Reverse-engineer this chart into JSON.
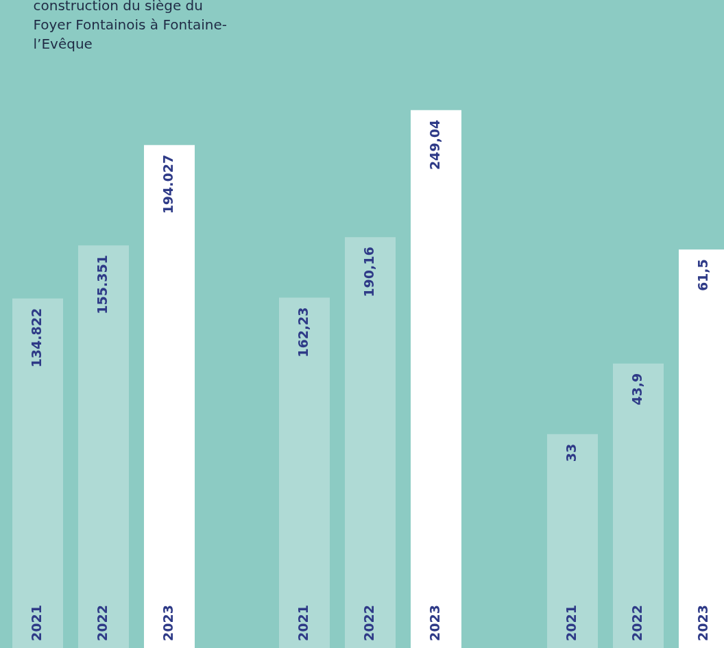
{
  "chart_data": [
    {
      "type": "bar",
      "categories": [
        "2021",
        "2022",
        "2023"
      ],
      "values": [
        134822,
        155351,
        194027
      ],
      "colors": [
        "#afdad5",
        "#afdad5",
        "#ffffff"
      ],
      "value_labels": [
        "134.822",
        "155.351",
        "194.027"
      ],
      "tick_labels": false,
      "annotations": [
        "construction du siège du Foyer Fontainois à Fontaine-l’Evêque"
      ]
    },
    {
      "type": "bar",
      "categories": [
        "2021",
        "2022",
        "2023"
      ],
      "values": [
        162.23,
        190.16,
        249.04
      ],
      "colors": [
        "#afdad5",
        "#afdad5",
        "#ffffff"
      ],
      "value_labels": [
        "162,23",
        "190,16",
        "249,04"
      ],
      "tick_labels": false
    },
    {
      "type": "bar",
      "categories": [
        "2021",
        "2022",
        "2023"
      ],
      "values": [
        33,
        43.9,
        61.5
      ],
      "colors": [
        "#afdad5",
        "#afdad5",
        "#ffffff"
      ],
      "value_labels": [
        "33",
        "43,9",
        "61,5"
      ],
      "tick_labels": false
    }
  ]
}
